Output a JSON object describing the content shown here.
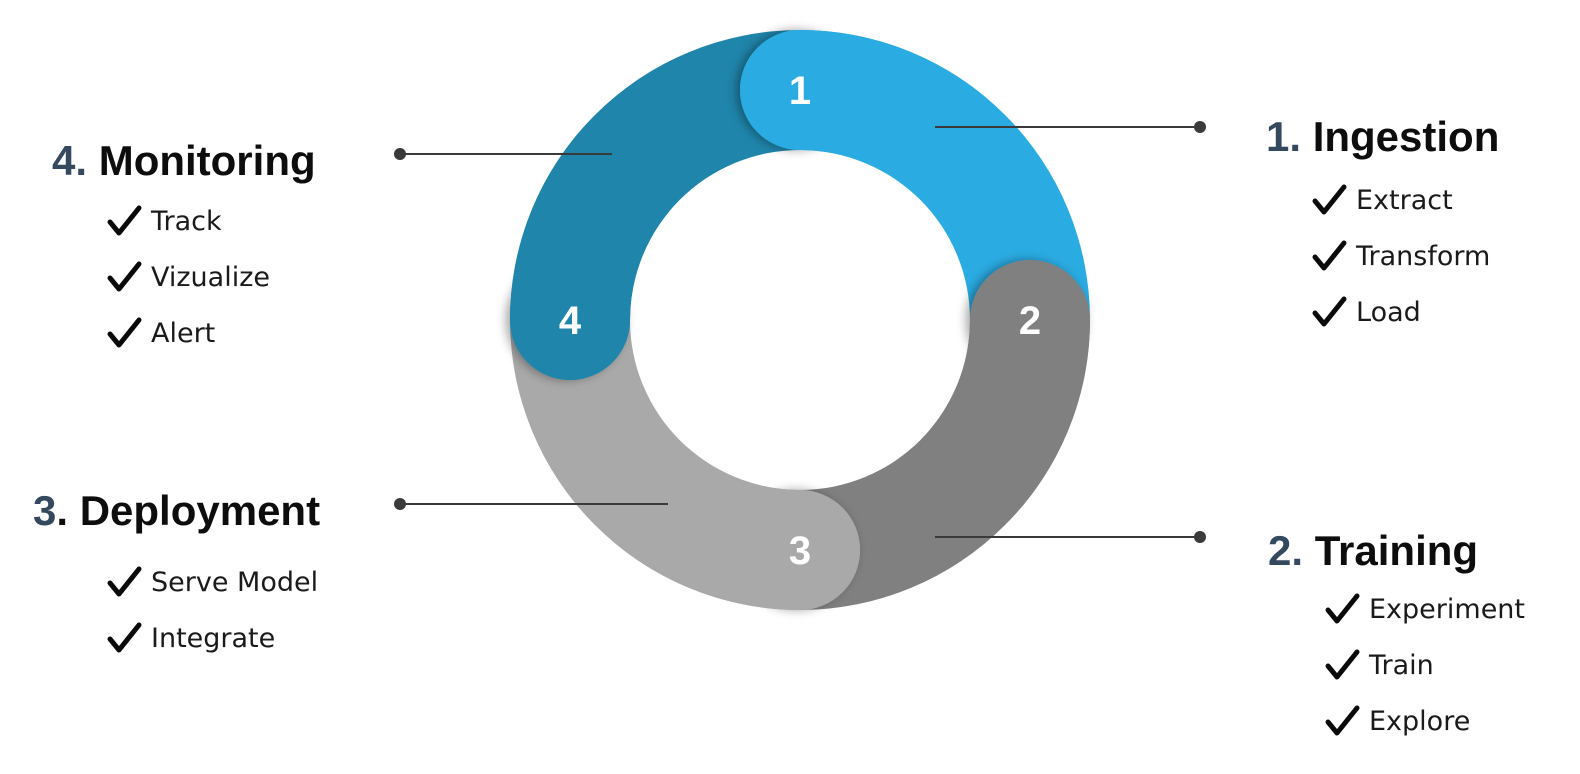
{
  "segments": [
    {
      "number": "1",
      "color": "#2aabe2"
    },
    {
      "number": "2",
      "color": "#808080"
    },
    {
      "number": "3",
      "color": "#a9a9a9"
    },
    {
      "number": "4",
      "color": "#1f85ab"
    }
  ],
  "stages": [
    {
      "num": "1.",
      "title": "Ingestion",
      "items": [
        "Extract",
        "Transform",
        "Load"
      ]
    },
    {
      "num": "2.",
      "title": "Training",
      "items": [
        "Experiment",
        "Train",
        "Explore"
      ]
    },
    {
      "num": "3",
      "sep": ".",
      "title": "Deployment",
      "items": [
        "Serve Model",
        "Integrate"
      ]
    },
    {
      "num": "4.",
      "title": "Monitoring",
      "items": [
        "Track",
        "Vizualize",
        "Alert"
      ]
    }
  ]
}
